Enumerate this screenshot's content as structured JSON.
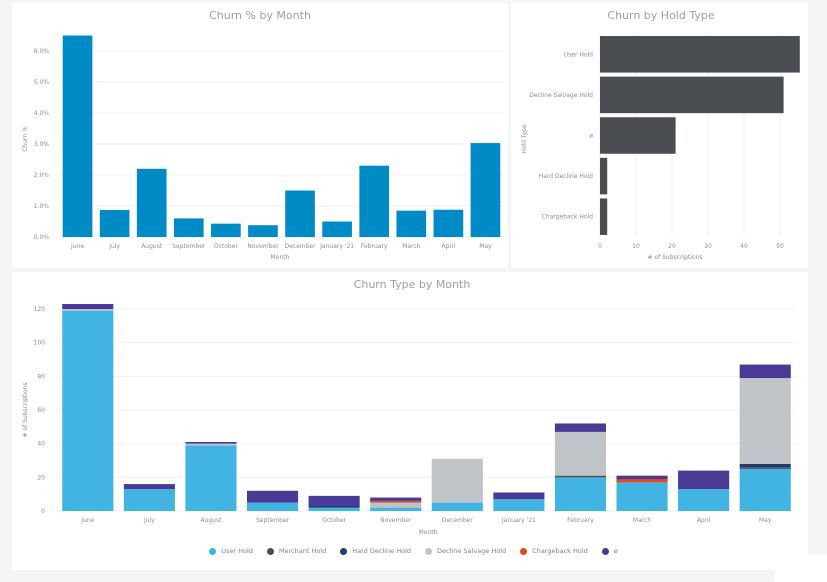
{
  "chart_data": [
    {
      "type": "bar",
      "title": "Churn % by Month",
      "xlabel": "Month",
      "ylabel": "Churn %",
      "ylim": [
        0,
        6.5
      ],
      "yticks": [
        "0.0%",
        "1.0%",
        "2.0%",
        "3.0%",
        "4.0%",
        "5.0%",
        "6.0%"
      ],
      "categories": [
        "June",
        "July",
        "August",
        "September",
        "October",
        "November",
        "December",
        "January '21",
        "February",
        "March",
        "April",
        "May"
      ],
      "values": [
        6.5,
        0.87,
        2.2,
        0.6,
        0.43,
        0.38,
        1.5,
        0.5,
        2.3,
        0.85,
        0.88,
        3.03
      ],
      "color": "#008bc6",
      "grid": true
    },
    {
      "type": "bar",
      "orientation": "horizontal",
      "title": "Churn by Hold Type",
      "xlabel": "# of Subscriptions",
      "ylabel": "Hold Type",
      "xlim": [
        0,
        56
      ],
      "xticks": [
        "0",
        "10",
        "20",
        "30",
        "40",
        "50"
      ],
      "categories": [
        "User Hold",
        "Decline Salvage Hold",
        "ø",
        "Hard Decline Hold",
        "Chargeback Hold"
      ],
      "values": [
        55.5,
        51,
        21,
        2,
        2
      ],
      "color": "#4a4e53",
      "grid": true
    },
    {
      "type": "bar",
      "stacked": true,
      "title": "Churn Type by Month",
      "xlabel": "Month",
      "ylabel": "# of Subscriptions",
      "ylim": [
        0,
        125
      ],
      "yticks": [
        "0",
        "20",
        "40",
        "60",
        "80",
        "100",
        "120"
      ],
      "categories": [
        "June",
        "July",
        "August",
        "September",
        "October",
        "November",
        "December",
        "January '21",
        "February",
        "March",
        "April",
        "May"
      ],
      "series": [
        {
          "name": "User Hold",
          "color": "#41b4e2",
          "values": [
            119,
            13,
            39,
            5,
            2,
            2,
            5,
            7,
            20,
            17,
            13,
            25
          ]
        },
        {
          "name": "Merchant Hold",
          "color": "#4a4e53",
          "values": [
            0,
            0,
            0,
            0,
            0,
            0,
            0,
            0,
            1,
            0,
            0,
            1
          ]
        },
        {
          "name": "Hard Decline Hold",
          "color": "#1f3a6e",
          "values": [
            0,
            0,
            0,
            0,
            1,
            0,
            0,
            0,
            0,
            0,
            0,
            2
          ]
        },
        {
          "name": "Decline Salvage Hold",
          "color": "#bec4c8",
          "values": [
            1,
            0,
            1,
            0,
            0,
            3,
            26,
            0,
            26,
            0,
            0,
            51
          ]
        },
        {
          "name": "Chargeback Hold",
          "color": "#e0481e",
          "values": [
            0,
            0,
            0,
            0,
            0,
            1,
            0,
            0,
            0,
            2,
            0,
            0
          ]
        },
        {
          "name": "ø",
          "color": "#4a3a96",
          "values": [
            3,
            3,
            1,
            7,
            6,
            2,
            0,
            4,
            5,
            2,
            11,
            8
          ]
        }
      ],
      "legend": "bottom-center",
      "grid": true
    }
  ]
}
